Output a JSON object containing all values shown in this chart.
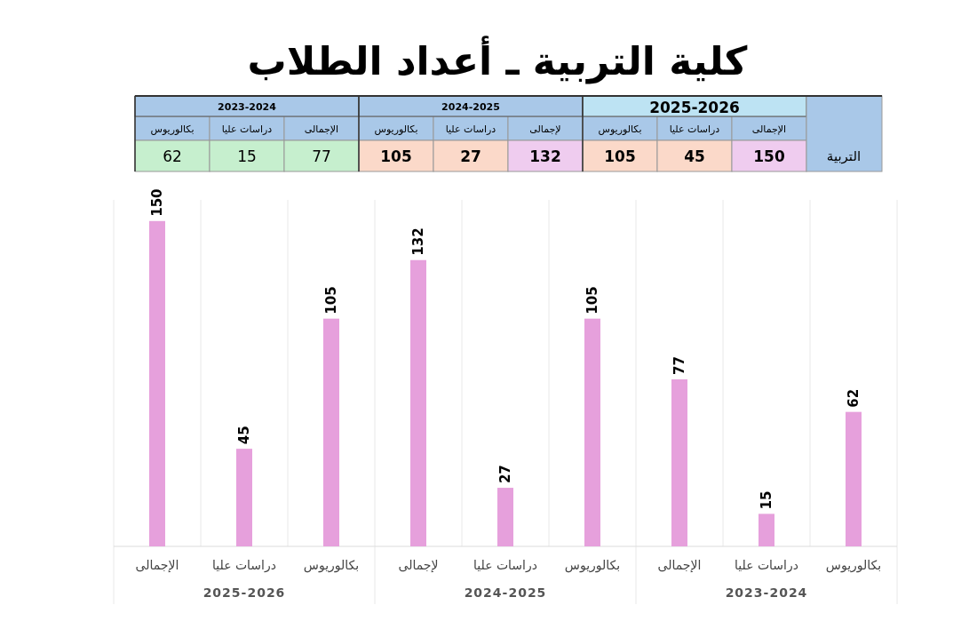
{
  "chart_data": {
    "type": "bar",
    "title": "كلية التربية ـ أعداد الطلاب",
    "categories": [
      "الإجمالى",
      "دراسات عليا",
      "بكالوريوس",
      "لإجمالى",
      "دراسات عليا",
      "بكالوريوس",
      "الإجمالى",
      "دراسات عليا",
      "بكالوريوس"
    ],
    "values": [
      150,
      45,
      105,
      132,
      27,
      105,
      77,
      15,
      62
    ],
    "color": "#e6a0dc",
    "data_labels": true,
    "annotations": [
      "2025-2026",
      "2024-2025",
      "2023-2024",
      "التربية",
      "62",
      "15",
      "77",
      "105",
      "27",
      "132",
      "105",
      "45",
      "150"
    ]
  }
}
